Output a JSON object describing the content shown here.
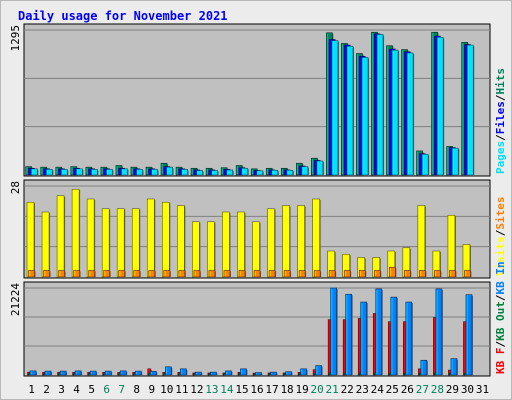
{
  "title": "Daily usage for November 2021",
  "colors": {
    "hits": "#00805c",
    "files": "#0000ff",
    "pages": "#00e0ff",
    "visits": "#ffff00",
    "sites": "#ff8000",
    "kbin": "#0080ff",
    "kbout": "#008040",
    "kbf": "#ff0000",
    "title": "#0000ff",
    "panel": "#c0c0c0",
    "weekend": "#00805c"
  },
  "chart_data": {
    "type": "bar",
    "title": "Daily usage for November 2021",
    "x": [
      "1",
      "2",
      "3",
      "4",
      "5",
      "6",
      "7",
      "8",
      "9",
      "10",
      "11",
      "12",
      "13",
      "14",
      "15",
      "16",
      "17",
      "18",
      "19",
      "20",
      "21",
      "22",
      "23",
      "24",
      "25",
      "26",
      "27",
      "28",
      "29",
      "30",
      "31"
    ],
    "weekend_days": [
      "6",
      "7",
      "13",
      "14",
      "20",
      "21",
      "27",
      "28"
    ],
    "panels": [
      {
        "max_label": "1295",
        "ymax": 1295,
        "legend": [
          "Pages",
          "/",
          "Files",
          "/",
          "Hits"
        ],
        "legend_colors": [
          "pages",
          "sep",
          "files",
          "sep",
          "hits"
        ],
        "series": [
          {
            "name": "Hits",
            "color": "hits",
            "values": [
              75,
              70,
              70,
              75,
              70,
              70,
              85,
              70,
              70,
              105,
              70,
              60,
              60,
              65,
              85,
              55,
              60,
              60,
              105,
              150,
              1270,
              1175,
              1085,
              1275,
              1155,
              1120,
              215,
              1275,
              255,
              1185,
              0
            ]
          },
          {
            "name": "Files",
            "color": "files",
            "values": [
              60,
              55,
              55,
              60,
              55,
              55,
              60,
              55,
              55,
              75,
              55,
              45,
              45,
              50,
              65,
              40,
              45,
              45,
              80,
              130,
              1210,
              1160,
              1060,
              1260,
              1125,
              1100,
              190,
              1240,
              245,
              1165,
              0
            ]
          },
          {
            "name": "Pages",
            "color": "pages",
            "values": [
              55,
              50,
              50,
              55,
              50,
              50,
              55,
              50,
              50,
              70,
              50,
              40,
              40,
              45,
              60,
              38,
              42,
              42,
              75,
              125,
              1200,
              1150,
              1050,
              1255,
              1115,
              1090,
              185,
              1230,
              240,
              1160,
              0
            ]
          }
        ]
      },
      {
        "max_label": "28",
        "ymax": 28,
        "legend": [
          "Visits",
          "/",
          "Sites"
        ],
        "legend_colors": [
          "visits",
          "sep",
          "sites"
        ],
        "series": [
          {
            "name": "Visits",
            "color": "visits",
            "values": [
              23,
              20,
              25,
              27,
              24,
              21,
              21,
              21,
              24,
              23,
              22,
              17,
              17,
              20,
              20,
              17,
              21,
              22,
              22,
              24,
              8,
              7,
              6,
              6,
              8,
              9,
              22,
              8,
              19,
              10,
              0
            ]
          },
          {
            "name": "Sites",
            "color": "sites",
            "values": [
              2,
              2,
              2,
              2,
              2,
              2,
              2,
              2,
              2,
              2,
              2,
              2,
              2,
              2,
              2,
              2,
              2,
              2,
              2,
              2,
              2,
              2,
              2,
              2,
              3,
              2,
              2,
              2,
              2,
              2,
              0
            ]
          }
        ]
      },
      {
        "max_label": "21224",
        "ymax": 21224,
        "legend": [
          "KB F",
          "/",
          "KB Out",
          "/",
          "KB In"
        ],
        "legend_colors": [
          "kbf",
          "sep",
          "kbout",
          "sep",
          "kbin"
        ],
        "series": [
          {
            "name": "KB F",
            "color": "kbf",
            "values": [
              700,
              650,
              650,
              650,
              650,
              650,
              650,
              650,
              1500,
              650,
              650,
              500,
              500,
              500,
              650,
              450,
              500,
              500,
              650,
              1300,
              13500,
              13500,
              13800,
              15000,
              13000,
              13000,
              1500,
              14000,
              1200,
              13000,
              0
            ]
          },
          {
            "name": "KB Out",
            "color": "kbout",
            "values": [
              400,
              350,
              350,
              350,
              350,
              350,
              350,
              350,
              400,
              350,
              350,
              300,
              300,
              300,
              350,
              250,
              300,
              300,
              350,
              400,
              500,
              450,
              450,
              500,
              450,
              450,
              400,
              500,
              400,
              450,
              0
            ]
          },
          {
            "name": "KB In",
            "color": "kbin",
            "values": [
              1000,
              950,
              950,
              1000,
              950,
              950,
              1000,
              950,
              900,
              2000,
              1500,
              700,
              700,
              1000,
              1500,
              600,
              700,
              800,
              1500,
              2300,
              21224,
              19700,
              17800,
              21000,
              19000,
              17800,
              3600,
              21000,
              4000,
              19600,
              0
            ]
          }
        ]
      }
    ]
  }
}
